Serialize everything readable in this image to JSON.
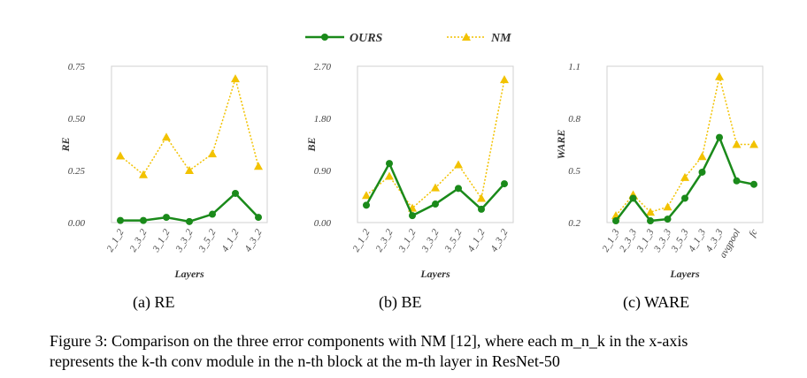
{
  "legend": [
    {
      "name": "OURS",
      "color": "#1a8a1a",
      "style": "solid",
      "marker": "circle"
    },
    {
      "name": "NM",
      "color": "#f2c200",
      "style": "dotted",
      "marker": "triangle"
    }
  ],
  "chart_data": [
    {
      "type": "line",
      "subcaption": "(a) RE",
      "xlabel": "Layers",
      "ylabel": "RE",
      "ylim": [
        0,
        0.75
      ],
      "yticks": [
        "0.00",
        "0.25",
        "0.50",
        "0.75"
      ],
      "categories": [
        "2_1_2",
        "2_3_2",
        "3_1_2",
        "3_3_2",
        "3_5_2",
        "4_1_2",
        "4_3_2"
      ],
      "series": [
        {
          "name": "OURS",
          "values": [
            0.01,
            0.01,
            0.025,
            0.005,
            0.04,
            0.14,
            0.025
          ]
        },
        {
          "name": "NM",
          "values": [
            0.32,
            0.23,
            0.41,
            0.25,
            0.33,
            0.69,
            0.27
          ]
        }
      ]
    },
    {
      "type": "line",
      "subcaption": "(b) BE",
      "xlabel": "Layers",
      "ylabel": "BE",
      "ylim": [
        0,
        2.7
      ],
      "yticks": [
        "0.00",
        "0.90",
        "1.80",
        "2.70"
      ],
      "categories": [
        "2_1_2",
        "2_3_2",
        "3_1_2",
        "3_3_2",
        "3_5_2",
        "4_1_2",
        "4_3_2"
      ],
      "series": [
        {
          "name": "OURS",
          "values": [
            0.3,
            1.02,
            0.12,
            0.32,
            0.59,
            0.23,
            0.67
          ]
        },
        {
          "name": "NM",
          "values": [
            0.47,
            0.8,
            0.25,
            0.6,
            1.0,
            0.42,
            2.47
          ]
        }
      ]
    },
    {
      "type": "line",
      "subcaption": "(c) WARE",
      "xlabel": "Layers",
      "ylabel": "WARE",
      "ylim": [
        0.2,
        1.1
      ],
      "yticks": [
        "0.2",
        "0.5",
        "0.8",
        "1.1"
      ],
      "categories": [
        "2_1_3",
        "2_3_3",
        "3_1_3",
        "3_3_3",
        "3_5_3",
        "4_1_3",
        "4_3_3",
        "avgpool",
        "fc"
      ],
      "series": [
        {
          "name": "OURS",
          "values": [
            0.21,
            0.34,
            0.21,
            0.22,
            0.34,
            0.49,
            0.69,
            0.44,
            0.42
          ]
        },
        {
          "name": "NM",
          "values": [
            0.24,
            0.36,
            0.26,
            0.29,
            0.46,
            0.58,
            1.04,
            0.65,
            0.65
          ]
        }
      ]
    }
  ],
  "caption": {
    "line1": "Figure 3: Comparison on the three error components with NM [12], where each m_n_k in the x-axis",
    "line2": "represents the k-th conv module in the n-th block at the m-th layer in ResNet-50"
  }
}
